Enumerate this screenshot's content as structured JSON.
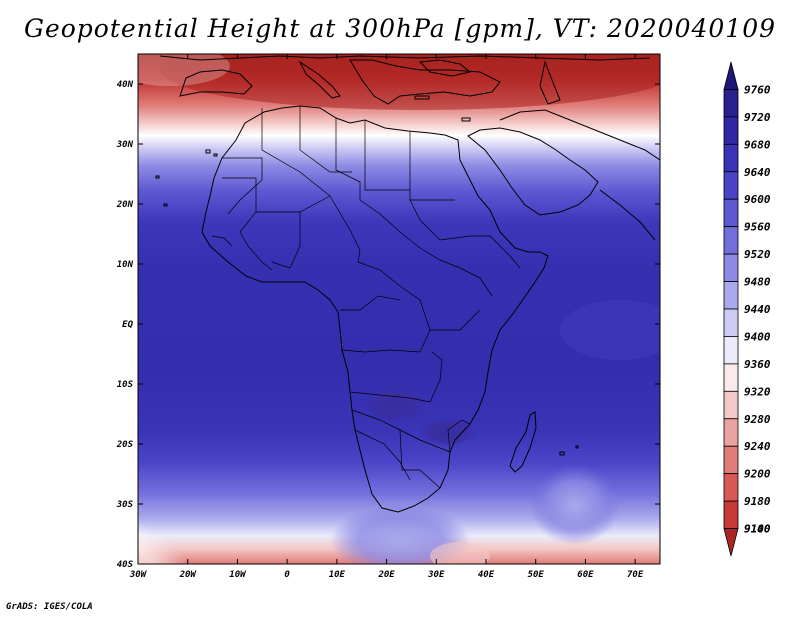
{
  "title": "Geopotential Height at 300hPa [gpm], VT: 2020040109",
  "credit": "GrADS: IGES/COLA",
  "map": {
    "lon_range": [
      -30,
      75
    ],
    "lat_range": [
      -40,
      45
    ],
    "lon_ticks": [
      {
        "lon": -30,
        "label": "30W"
      },
      {
        "lon": -20,
        "label": "20W"
      },
      {
        "lon": -10,
        "label": "10W"
      },
      {
        "lon": 0,
        "label": "0"
      },
      {
        "lon": 10,
        "label": "10E"
      },
      {
        "lon": 20,
        "label": "20E"
      },
      {
        "lon": 30,
        "label": "30E"
      },
      {
        "lon": 40,
        "label": "40E"
      },
      {
        "lon": 50,
        "label": "50E"
      },
      {
        "lon": 60,
        "label": "60E"
      },
      {
        "lon": 70,
        "label": "70E"
      }
    ],
    "lat_ticks": [
      {
        "lat": 40,
        "label": "40N"
      },
      {
        "lat": 30,
        "label": "30N"
      },
      {
        "lat": 20,
        "label": "20N"
      },
      {
        "lat": 10,
        "label": "10N"
      },
      {
        "lat": 0,
        "label": "EQ"
      },
      {
        "lat": -10,
        "label": "10S"
      },
      {
        "lat": -20,
        "label": "20S"
      },
      {
        "lat": -30,
        "label": "30S"
      },
      {
        "lat": -40,
        "label": "40S"
      }
    ]
  },
  "colorbar": {
    "top_value": "9760",
    "bins": [
      {
        "label": "9720",
        "color": "#2a1f8f"
      },
      {
        "label": "9680",
        "color": "#3128a6"
      },
      {
        "label": "9640",
        "color": "#3a33b8"
      },
      {
        "label": "9600",
        "color": "#4a44c8"
      },
      {
        "label": "9560",
        "color": "#5c58d2"
      },
      {
        "label": "9520",
        "color": "#726fdc"
      },
      {
        "label": "9480",
        "color": "#8c8ae4"
      },
      {
        "label": "9440",
        "color": "#aaa9ec"
      },
      {
        "label": "9400",
        "color": "#cccbf4"
      },
      {
        "label": "9360",
        "color": "#ecebfb"
      },
      {
        "label": "9320",
        "color": "#fbeaea"
      },
      {
        "label": "9280",
        "color": "#f3c8c6"
      },
      {
        "label": "9240",
        "color": "#e9a3a0"
      },
      {
        "label": "9200",
        "color": "#e07c79"
      },
      {
        "label": "9180",
        "color": "#d75855"
      },
      {
        "label": "9140",
        "color": "#c83a38"
      },
      {
        "label": "9100",
        "color": "#ac2522"
      }
    ],
    "bottom_value": "9100"
  },
  "colors": {
    "deep_blue": "#2e28a4",
    "mid_blue": "#3a34b6",
    "light_blue": "#8c8ae4",
    "pale": "#f4f4fc",
    "light_red": "#e9a3a0",
    "dark_red": "#ac2522"
  }
}
